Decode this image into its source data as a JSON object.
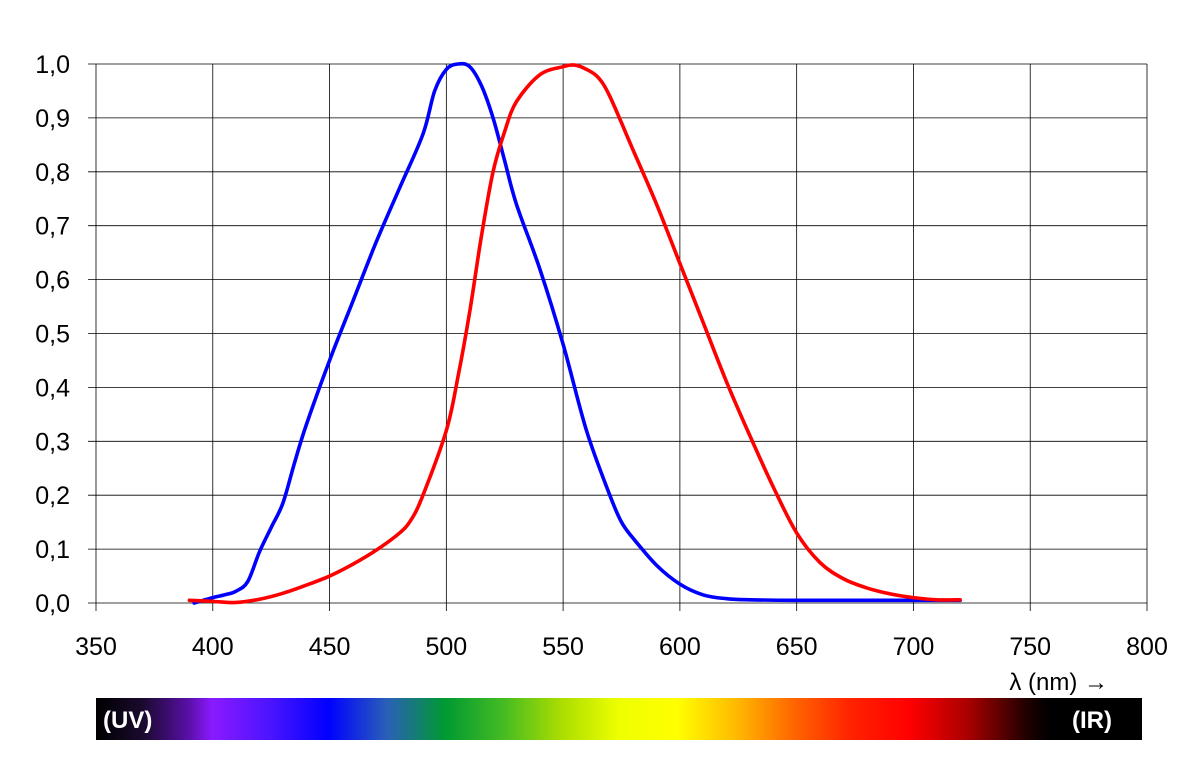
{
  "chart_data": {
    "type": "line",
    "title": "",
    "xlabel": "λ (nm) →",
    "ylabel": "",
    "xlim": [
      350,
      800
    ],
    "ylim": [
      0,
      1
    ],
    "x_ticks": [
      350,
      400,
      450,
      500,
      550,
      600,
      650,
      700,
      750,
      800
    ],
    "y_ticks": [
      0.0,
      0.1,
      0.2,
      0.3,
      0.4,
      0.5,
      0.6,
      0.7,
      0.8,
      0.9,
      1.0
    ],
    "y_tick_labels": [
      "0,0",
      "0,1",
      "0,2",
      "0,3",
      "0,4",
      "0,5",
      "0,6",
      "0,7",
      "0,8",
      "0,9",
      "1,0"
    ],
    "grid": true,
    "series": [
      {
        "color": "#0000ff",
        "x": [
          392,
          400,
          405,
          410,
          415,
          420,
          425,
          430,
          435,
          440,
          450,
          460,
          470,
          480,
          490,
          495,
          500,
          505,
          510,
          515,
          520,
          525,
          530,
          540,
          550,
          560,
          570,
          575,
          580,
          590,
          600,
          610,
          620,
          630,
          650,
          700,
          720
        ],
        "y": [
          0.0,
          0.01,
          0.015,
          0.022,
          0.04,
          0.095,
          0.14,
          0.185,
          0.26,
          0.33,
          0.45,
          0.56,
          0.67,
          0.77,
          0.87,
          0.95,
          0.99,
          1.0,
          0.995,
          0.96,
          0.9,
          0.82,
          0.74,
          0.62,
          0.48,
          0.32,
          0.2,
          0.15,
          0.12,
          0.07,
          0.035,
          0.015,
          0.008,
          0.006,
          0.005,
          0.005,
          0.005
        ]
      },
      {
        "color": "#ff0000",
        "x": [
          390,
          400,
          410,
          420,
          430,
          440,
          450,
          460,
          470,
          480,
          485,
          490,
          500,
          505,
          510,
          515,
          520,
          525,
          530,
          540,
          550,
          555,
          560,
          565,
          570,
          580,
          590,
          600,
          610,
          620,
          630,
          640,
          650,
          660,
          670,
          680,
          690,
          700,
          710,
          720
        ],
        "y": [
          0.005,
          0.003,
          0.001,
          0.007,
          0.018,
          0.033,
          0.05,
          0.072,
          0.098,
          0.13,
          0.155,
          0.2,
          0.32,
          0.42,
          0.54,
          0.68,
          0.8,
          0.875,
          0.93,
          0.98,
          0.995,
          0.998,
          0.99,
          0.975,
          0.94,
          0.84,
          0.74,
          0.63,
          0.52,
          0.41,
          0.31,
          0.215,
          0.13,
          0.075,
          0.045,
          0.028,
          0.017,
          0.01,
          0.006,
          0.006
        ]
      }
    ]
  },
  "spectrum": {
    "left_label": "(UV)",
    "right_label": "(IR)",
    "stops": [
      {
        "wl": 350,
        "color": "#000000"
      },
      {
        "wl": 370,
        "color": "#1a0a2e"
      },
      {
        "wl": 390,
        "color": "#5a0fa8"
      },
      {
        "wl": 400,
        "color": "#8a1aff"
      },
      {
        "wl": 425,
        "color": "#4b14ff"
      },
      {
        "wl": 450,
        "color": "#0000ff"
      },
      {
        "wl": 475,
        "color": "#2a5fb8"
      },
      {
        "wl": 500,
        "color": "#009933"
      },
      {
        "wl": 525,
        "color": "#44bb22"
      },
      {
        "wl": 550,
        "color": "#aadd00"
      },
      {
        "wl": 575,
        "color": "#eeff00"
      },
      {
        "wl": 600,
        "color": "#ffff00"
      },
      {
        "wl": 625,
        "color": "#ffbb00"
      },
      {
        "wl": 650,
        "color": "#ff6600"
      },
      {
        "wl": 675,
        "color": "#ff2200"
      },
      {
        "wl": 700,
        "color": "#ff0000"
      },
      {
        "wl": 725,
        "color": "#aa0000"
      },
      {
        "wl": 750,
        "color": "#220000"
      },
      {
        "wl": 760,
        "color": "#000000"
      },
      {
        "wl": 800,
        "color": "#000000"
      }
    ]
  }
}
